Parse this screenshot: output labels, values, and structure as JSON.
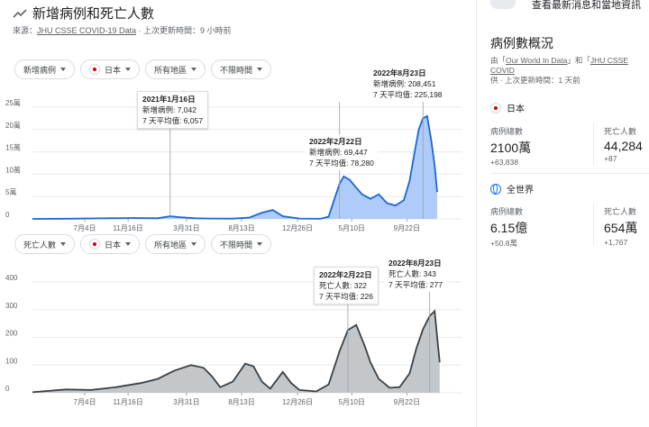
{
  "header": {
    "title": "新增病例和死亡人數",
    "source_prefix": "來源：",
    "source_link": "JHU CSSE COVID-19 Data",
    "source_suffix": " · 上次更新時間：9 小時前"
  },
  "filters_cases": [
    {
      "label": "新增病例"
    },
    {
      "label": "日本",
      "flag": true
    },
    {
      "label": "所有地區"
    },
    {
      "label": "不限時間"
    }
  ],
  "filters_deaths": [
    {
      "label": "死亡人數"
    },
    {
      "label": "日本",
      "flag": true
    },
    {
      "label": "所有地區"
    },
    {
      "label": "不限時間"
    }
  ],
  "cases_chart": {
    "y_tick_labels": [
      "25萬",
      "20萬",
      "15萬",
      "10萬",
      "5萬",
      "0"
    ],
    "tooltips": [
      {
        "date": "2021年1月16日",
        "line1": "新增病例: 7,042",
        "line2": "7 天平均值: 6,057"
      },
      {
        "date": "2022年2月22日",
        "line1": "新增病例: 69,447",
        "line2": "7 天平均值: 78,280"
      },
      {
        "date": "2022年8月23日",
        "line1": "新增病例: 208,451",
        "line2": "7 天平均值: 225,198"
      }
    ]
  },
  "deaths_chart": {
    "y_tick_labels": [
      "400",
      "300",
      "200",
      "100",
      "0"
    ],
    "tooltips": [
      {
        "date": "2022年2月22日",
        "line1": "死亡人數: 322",
        "line2": "7 天平均值: 226"
      },
      {
        "date": "2022年8月23日",
        "line1": "死亡人數: 343",
        "line2": "7 天平均值: 277"
      }
    ]
  },
  "x_tick_labels": [
    "7月4日",
    "11月16日",
    "3月31日",
    "8月13日",
    "12月26日",
    "5月10日",
    "9月22日"
  ],
  "chart_data": [
    {
      "type": "area",
      "ylim": [
        0,
        250000
      ],
      "x_ticks": [
        "7月4日",
        "11月16日",
        "3月31日",
        "8月13日",
        "12月26日",
        "5月10日",
        "9月22日"
      ],
      "series": [
        {
          "points": [
            [
              0,
              0
            ],
            [
              40,
              400
            ],
            [
              80,
              1200
            ],
            [
              120,
              2000
            ],
            [
              150,
              1500
            ],
            [
              165,
              6057
            ],
            [
              175,
              4000
            ],
            [
              195,
              1500
            ],
            [
              215,
              800
            ],
            [
              240,
              600
            ],
            [
              260,
              3000
            ],
            [
              275,
              14000
            ],
            [
              288,
              20000
            ],
            [
              300,
              6000
            ],
            [
              320,
              800
            ],
            [
              345,
              300
            ],
            [
              355,
              5000
            ],
            [
              362,
              45000
            ],
            [
              368,
              78280
            ],
            [
              373,
              95000
            ],
            [
              380,
              88000
            ],
            [
              388,
              70000
            ],
            [
              395,
              55000
            ],
            [
              405,
              45000
            ],
            [
              415,
              55000
            ],
            [
              425,
              35000
            ],
            [
              435,
              30000
            ],
            [
              445,
              42000
            ],
            [
              452,
              85000
            ],
            [
              458,
              150000
            ],
            [
              463,
              200000
            ],
            [
              468,
              225198
            ],
            [
              473,
              230000
            ],
            [
              478,
              175000
            ],
            [
              482,
              120000
            ],
            [
              485,
              60000
            ]
          ],
          "color": "#1967d2"
        }
      ]
    },
    {
      "type": "area",
      "ylim": [
        0,
        400
      ],
      "x_ticks": [
        "7月4日",
        "11月16日",
        "3月31日",
        "8月13日",
        "12月26日",
        "5月10日",
        "9月22日"
      ],
      "series": [
        {
          "points": [
            [
              0,
              2
            ],
            [
              40,
              12
            ],
            [
              70,
              10
            ],
            [
              100,
              20
            ],
            [
              130,
              35
            ],
            [
              150,
              50
            ],
            [
              170,
              80
            ],
            [
              190,
              100
            ],
            [
              205,
              90
            ],
            [
              215,
              60
            ],
            [
              225,
              20
            ],
            [
              240,
              40
            ],
            [
              255,
              105
            ],
            [
              265,
              95
            ],
            [
              275,
              40
            ],
            [
              285,
              15
            ],
            [
              300,
              75
            ],
            [
              310,
              35
            ],
            [
              320,
              10
            ],
            [
              340,
              5
            ],
            [
              355,
              30
            ],
            [
              368,
              150
            ],
            [
              378,
              226
            ],
            [
              388,
              245
            ],
            [
              398,
              170
            ],
            [
              405,
              110
            ],
            [
              415,
              50
            ],
            [
              428,
              18
            ],
            [
              440,
              20
            ],
            [
              452,
              70
            ],
            [
              460,
              160
            ],
            [
              468,
              230
            ],
            [
              476,
              277
            ],
            [
              482,
              295
            ],
            [
              485,
              200
            ],
            [
              488,
              110
            ]
          ],
          "color": "#3c4043"
        }
      ]
    }
  ],
  "sidebar": {
    "top_text": "查看最新消息和當地資訊",
    "title": "病例數概況",
    "source_line1_link1": "Our World In Data",
    "source_line1_mid": "和",
    "source_line1_link2": "JHU CSSE COVID",
    "source_line2": "供 · 上次更新時間：1 天前",
    "japan": {
      "name": "日本",
      "cases_label": "病例總數",
      "cases_value": "2100萬",
      "cases_delta": "+63,838",
      "deaths_label": "死亡人數",
      "deaths_value": "44,284",
      "deaths_delta": "+87"
    },
    "world": {
      "name": "全世界",
      "cases_label": "病例總數",
      "cases_value": "6.15億",
      "cases_delta": "+50.8萬",
      "deaths_label": "死亡人數",
      "deaths_value": "654萬",
      "deaths_delta": "+1,767"
    }
  }
}
